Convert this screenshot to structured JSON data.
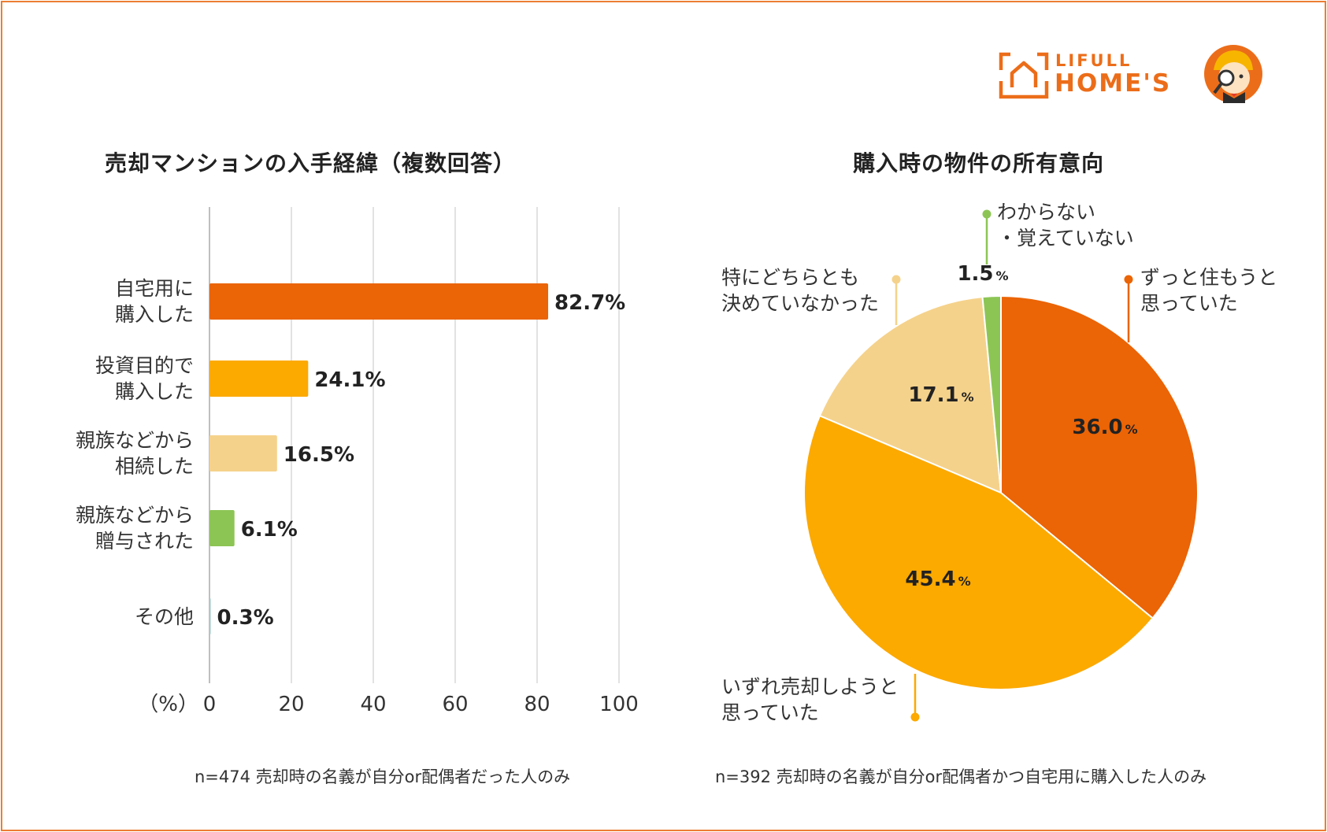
{
  "brand": {
    "line1": "LIFULL",
    "line2": "HOME'S",
    "color": "#ec6d19",
    "icon": "house-logo-icon",
    "mascot": "mascot-detective-icon"
  },
  "chart_data": [
    {
      "type": "bar",
      "orientation": "horizontal",
      "title": "売却マンションの入手経緯（複数回答）",
      "categories": [
        "自宅用に\n購入した",
        "投資目的で\n購入した",
        "親族などから\n相続した",
        "親族などから\n贈与された",
        "その他"
      ],
      "values": [
        82.7,
        24.1,
        16.5,
        6.1,
        0.3
      ],
      "value_labels": [
        "82.7%",
        "24.1%",
        "16.5%",
        "6.1%",
        "0.3%"
      ],
      "colors": [
        "#eb6405",
        "#fca900",
        "#f5d28b",
        "#8dc555",
        "#a8cccc"
      ],
      "xlabel": "（%）",
      "xlim": [
        0,
        100
      ],
      "xticks": [
        0,
        20,
        40,
        60,
        80,
        100
      ],
      "grid": true,
      "note": "n=474 売却時の名義が自分or配偶者だった人のみ"
    },
    {
      "type": "pie",
      "title": "購入時の物件の所有意向",
      "slices": [
        {
          "label": "ずっと住もうと\n思っていた",
          "value": 36.0,
          "display": "36.0",
          "color": "#eb6405"
        },
        {
          "label": "いずれ売却しようと\n思っていた",
          "value": 45.4,
          "display": "45.4",
          "color": "#fca900"
        },
        {
          "label": "特にどちらとも\n決めていなかった",
          "value": 17.1,
          "display": "17.1",
          "color": "#f5d28b"
        },
        {
          "label": "わからない\n・覚えていない",
          "value": 1.5,
          "display": "1.5",
          "color": "#8dc555"
        }
      ],
      "percent_sign": "%",
      "note": "n=392 売却時の名義が自分or配偶者かつ自宅用に購入した人のみ"
    }
  ]
}
